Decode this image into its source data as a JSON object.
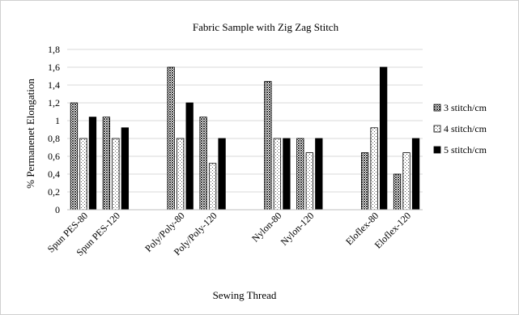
{
  "chart_data": {
    "type": "bar",
    "title": "Fabric Sample with Zig Zag Stitch",
    "xlabel": "Sewing Thread",
    "ylabel": "% Permanenet Elongation",
    "ylim": [
      0,
      1.8
    ],
    "yticks": [
      "0",
      "0,2",
      "0,4",
      "0,6",
      "0,8",
      "1",
      "1,2",
      "1,4",
      "1,6",
      "1,8"
    ],
    "grid": true,
    "legend_position": "right",
    "groups": [
      {
        "categories": [
          "Spun PES-80",
          "Spun PES-120"
        ]
      },
      {
        "categories": [
          "Poly/Poly-80",
          "Poly/Poly-120"
        ]
      },
      {
        "categories": [
          "Nylon-80",
          "Nylon-120"
        ]
      },
      {
        "categories": [
          "Eloflex-80",
          "Eloflex-120"
        ]
      }
    ],
    "categories": [
      "Spun PES-80",
      "Spun PES-120",
      "Poly/Poly-80",
      "Poly/Poly-120",
      "Nylon-80",
      "Nylon-120",
      "Eloflex-80",
      "Eloflex-120"
    ],
    "series": [
      {
        "name": "3 stitch/cm",
        "pattern": "crosshatch",
        "values": [
          1.2,
          1.04,
          1.6,
          1.04,
          1.44,
          0.8,
          0.64,
          0.4
        ]
      },
      {
        "name": "4 stitch/cm",
        "pattern": "dotted",
        "values": [
          0.8,
          0.8,
          0.8,
          0.52,
          0.8,
          0.64,
          0.92,
          0.64
        ]
      },
      {
        "name": "5 stitch/cm",
        "pattern": "solid",
        "color": "#000000",
        "values": [
          1.04,
          0.92,
          1.2,
          0.8,
          0.8,
          0.8,
          1.6,
          0.8
        ]
      }
    ]
  }
}
